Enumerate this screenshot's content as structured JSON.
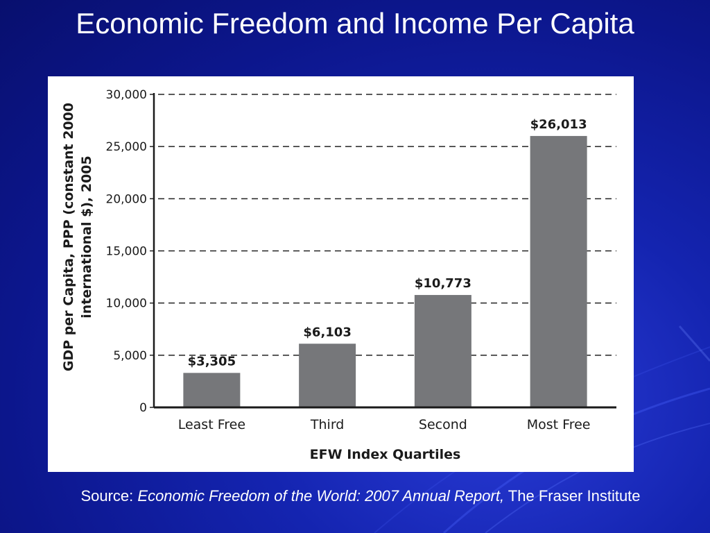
{
  "slide": {
    "title": "Economic Freedom and Income Per Capita",
    "source_prefix": "Source: ",
    "source_italic": "Economic Freedom of the World: 2007 Annual Report,",
    "source_suffix": " The Fraser Institute"
  },
  "chart_data": {
    "type": "bar",
    "categories": [
      "Least Free",
      "Third",
      "Second",
      "Most Free"
    ],
    "values": [
      3305,
      6103,
      10773,
      26013
    ],
    "data_labels": [
      "$3,305",
      "$6,103",
      "$10,773",
      "$26,013"
    ],
    "xlabel": "EFW Index Quartiles",
    "ylabel_line1": "GDP per Capita, PPP (constant 2000",
    "ylabel_line2": "international $), 2005",
    "ylim": [
      0,
      30000
    ],
    "yticks": [
      0,
      5000,
      10000,
      15000,
      20000,
      25000,
      30000
    ],
    "ytick_labels": [
      "0",
      "5,000",
      "10,000",
      "15,000",
      "20,000",
      "25,000",
      "30,000"
    ],
    "grid": "dashed-horizontal",
    "bar_color": "#76777a"
  },
  "colors": {
    "background": "#0c168c",
    "text": "#ffffff"
  }
}
